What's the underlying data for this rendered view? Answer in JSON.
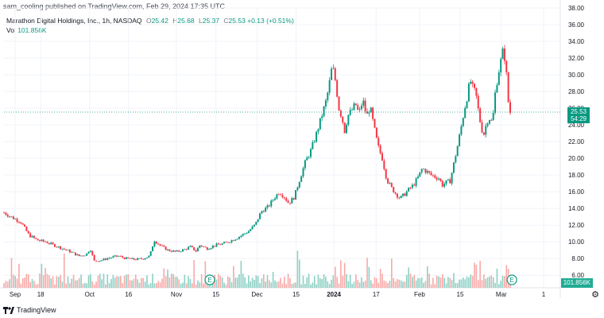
{
  "publisher_line": "sam_cooling published on TradingView.com, Feb 29, 2024 17:35 UTC",
  "legend": {
    "symbol": "Marathon Digital Holdings, Inc., 1h, NASDAQ",
    "open_label": "O",
    "open": "25.42",
    "high_label": "H",
    "high": "25.68",
    "low_label": "L",
    "low": "25.37",
    "close_label": "C",
    "close": "25.53",
    "change": "+0.13 (+0.51%)"
  },
  "volume_legend": {
    "label": "Vol",
    "value": "101.856K"
  },
  "price_badge": {
    "price": "25.53",
    "countdown": "54:29"
  },
  "volume_badge": "101.856K",
  "footer": {
    "brand": "TradingView"
  },
  "colors": {
    "up": "#089981",
    "down": "#f23645",
    "vol_up": "#8ed0c4",
    "vol_down": "#f7a9a7",
    "grid": "#f0f3fa"
  },
  "icons": {
    "logo": "tradingview-logo-icon",
    "earnings": "earnings-e-icon",
    "settings": "gear-icon"
  },
  "earnings_marker_label": "E",
  "chart_data": {
    "type": "candlestick",
    "title": "Marathon Digital Holdings, Inc., 1h, NASDAQ",
    "ylim": [
      4.5,
      38.0
    ],
    "y_ticks": [
      "6.00",
      "8.00",
      "10.00",
      "12.00",
      "14.00",
      "16.00",
      "18.00",
      "20.00",
      "22.00",
      "24.00",
      "26.00",
      "28.00",
      "30.00",
      "32.00",
      "34.00",
      "36.00",
      "38.00"
    ],
    "x_ticks": [
      {
        "label": "Sep",
        "pos": 0.02
      },
      {
        "label": "18",
        "pos": 0.066
      },
      {
        "label": "Oct",
        "pos": 0.154
      },
      {
        "label": "16",
        "pos": 0.224
      },
      {
        "label": "Nov",
        "pos": 0.31
      },
      {
        "label": "15",
        "pos": 0.381
      },
      {
        "label": "Dec",
        "pos": 0.455
      },
      {
        "label": "15",
        "pos": 0.525
      },
      {
        "label": "2024",
        "pos": 0.593,
        "bold": true
      },
      {
        "label": "17",
        "pos": 0.669
      },
      {
        "label": "Feb",
        "pos": 0.747
      },
      {
        "label": "15",
        "pos": 0.82
      },
      {
        "label": "Mar",
        "pos": 0.894
      },
      {
        "label": "1",
        "pos": 0.97
      }
    ],
    "last_price": 25.53,
    "path_points": [
      [
        0.0,
        13.5
      ],
      [
        0.012,
        13.0
      ],
      [
        0.03,
        12.4
      ],
      [
        0.045,
        10.8
      ],
      [
        0.06,
        10.2
      ],
      [
        0.075,
        10.0
      ],
      [
        0.09,
        9.6
      ],
      [
        0.105,
        9.2
      ],
      [
        0.12,
        8.8
      ],
      [
        0.135,
        8.3
      ],
      [
        0.148,
        8.5
      ],
      [
        0.155,
        9.2
      ],
      [
        0.162,
        7.7
      ],
      [
        0.175,
        7.8
      ],
      [
        0.19,
        8.1
      ],
      [
        0.205,
        8.3
      ],
      [
        0.22,
        8.0
      ],
      [
        0.235,
        7.9
      ],
      [
        0.25,
        8.0
      ],
      [
        0.262,
        8.3
      ],
      [
        0.27,
        10.2
      ],
      [
        0.282,
        9.5
      ],
      [
        0.295,
        9.0
      ],
      [
        0.31,
        8.8
      ],
      [
        0.325,
        9.1
      ],
      [
        0.335,
        9.4
      ],
      [
        0.345,
        8.9
      ],
      [
        0.352,
        9.6
      ],
      [
        0.365,
        9.2
      ],
      [
        0.38,
        9.6
      ],
      [
        0.395,
        9.8
      ],
      [
        0.41,
        10.2
      ],
      [
        0.425,
        10.7
      ],
      [
        0.44,
        11.3
      ],
      [
        0.452,
        12.1
      ],
      [
        0.462,
        13.6
      ],
      [
        0.475,
        14.2
      ],
      [
        0.485,
        15.2
      ],
      [
        0.495,
        16.0
      ],
      [
        0.505,
        15.3
      ],
      [
        0.512,
        14.6
      ],
      [
        0.522,
        15.4
      ],
      [
        0.532,
        17.6
      ],
      [
        0.542,
        19.6
      ],
      [
        0.552,
        21.0
      ],
      [
        0.56,
        22.6
      ],
      [
        0.57,
        24.8
      ],
      [
        0.58,
        27.1
      ],
      [
        0.585,
        29.0
      ],
      [
        0.59,
        31.1
      ],
      [
        0.596,
        29.2
      ],
      [
        0.602,
        26.0
      ],
      [
        0.608,
        24.8
      ],
      [
        0.612,
        23.2
      ],
      [
        0.618,
        25.1
      ],
      [
        0.625,
        25.7
      ],
      [
        0.632,
        26.5
      ],
      [
        0.638,
        25.3
      ],
      [
        0.645,
        27.0
      ],
      [
        0.652,
        25.0
      ],
      [
        0.658,
        26.2
      ],
      [
        0.665,
        23.8
      ],
      [
        0.672,
        21.5
      ],
      [
        0.68,
        20.0
      ],
      [
        0.688,
        17.5
      ],
      [
        0.696,
        16.5
      ],
      [
        0.704,
        15.8
      ],
      [
        0.712,
        15.2
      ],
      [
        0.72,
        15.7
      ],
      [
        0.728,
        16.3
      ],
      [
        0.736,
        16.8
      ],
      [
        0.745,
        17.8
      ],
      [
        0.752,
        18.8
      ],
      [
        0.76,
        18.4
      ],
      [
        0.768,
        18.0
      ],
      [
        0.775,
        17.8
      ],
      [
        0.782,
        17.6
      ],
      [
        0.788,
        16.8
      ],
      [
        0.795,
        17.1
      ],
      [
        0.802,
        17.3
      ],
      [
        0.81,
        19.8
      ],
      [
        0.816,
        21.7
      ],
      [
        0.822,
        23.8
      ],
      [
        0.828,
        26.0
      ],
      [
        0.833,
        27.5
      ],
      [
        0.838,
        29.4
      ],
      [
        0.843,
        28.3
      ],
      [
        0.848,
        27.8
      ],
      [
        0.853,
        25.6
      ],
      [
        0.858,
        23.6
      ],
      [
        0.863,
        22.9
      ],
      [
        0.868,
        24.5
      ],
      [
        0.873,
        24.8
      ],
      [
        0.878,
        24.2
      ],
      [
        0.883,
        27.8
      ],
      [
        0.888,
        30.0
      ],
      [
        0.893,
        31.6
      ],
      [
        0.898,
        33.2
      ],
      [
        0.903,
        30.2
      ],
      [
        0.906,
        27.0
      ],
      [
        0.91,
        25.5
      ]
    ],
    "volume": {
      "earnings_markers_pos": [
        0.37,
        0.913
      ]
    }
  }
}
